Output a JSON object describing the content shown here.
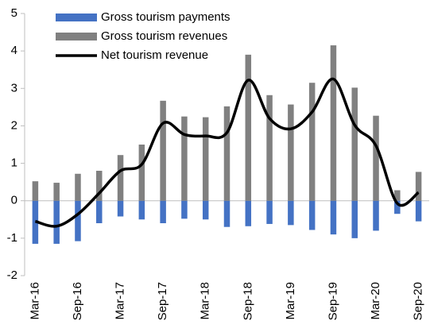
{
  "chart_data": {
    "type": "bar-line",
    "categories": [
      "Mar-16",
      null,
      "Sep-16",
      null,
      "Mar-17",
      null,
      "Sep-17",
      null,
      "Mar-18",
      null,
      "Sep-18",
      null,
      "Mar-19",
      null,
      "Sep-19",
      null,
      "Mar-20",
      null,
      "Sep-20"
    ],
    "series": [
      {
        "name": "Gross tourism payments",
        "type": "bar",
        "color": "#4472c4",
        "values": [
          -1.15,
          -1.15,
          -1.08,
          -0.6,
          -0.42,
          -0.5,
          -0.6,
          -0.48,
          -0.5,
          -0.7,
          -0.68,
          -0.62,
          -0.65,
          -0.78,
          -0.9,
          -1.0,
          -0.8,
          -0.35,
          -0.55
        ]
      },
      {
        "name": "Gross tourism revenues",
        "type": "bar",
        "color": "#808080",
        "values": [
          0.52,
          0.48,
          0.72,
          0.8,
          1.22,
          1.5,
          2.67,
          2.25,
          2.23,
          2.52,
          3.9,
          2.82,
          2.57,
          3.15,
          4.15,
          3.02,
          2.27,
          0.28,
          0.77
        ]
      },
      {
        "name": "Net tourism revenue",
        "type": "line",
        "color": "#000000",
        "values": [
          -0.55,
          -0.68,
          -0.36,
          0.2,
          0.8,
          0.97,
          2.07,
          1.77,
          1.73,
          1.82,
          3.22,
          2.2,
          1.92,
          2.37,
          3.25,
          2.02,
          1.47,
          -0.07,
          0.22
        ]
      }
    ],
    "ylim": [
      -2,
      5
    ],
    "yticks": [
      -2,
      -1,
      0,
      1,
      2,
      3,
      4,
      5
    ]
  }
}
